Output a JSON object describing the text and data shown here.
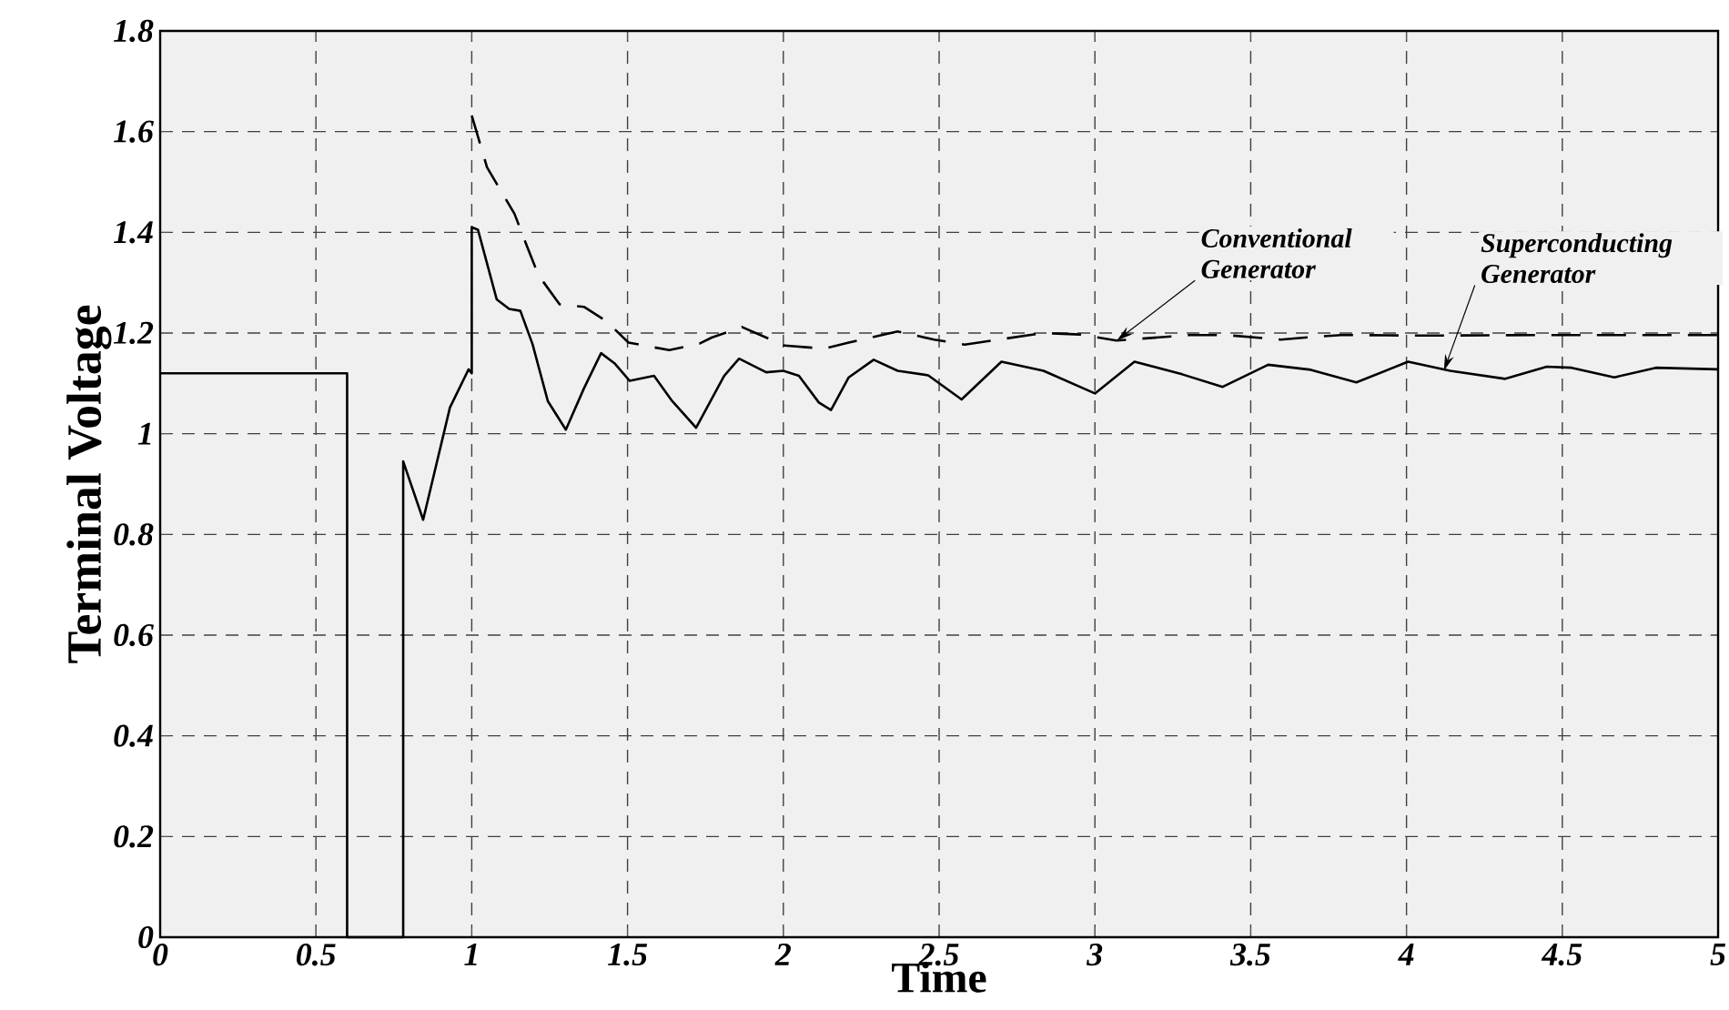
{
  "chart_data": {
    "type": "line",
    "xlabel": "Time",
    "ylabel": "Terminal Voltage",
    "xlim": [
      0,
      5
    ],
    "ylim": [
      0,
      1.8
    ],
    "xticks": [
      0,
      0.5,
      1,
      1.5,
      2,
      2.5,
      3,
      3.5,
      4,
      4.5,
      5
    ],
    "yticks": [
      0,
      0.2,
      0.4,
      0.6,
      0.8,
      1,
      1.2,
      1.4,
      1.6,
      1.8
    ],
    "grid": true,
    "series": [
      {
        "color": "#000000",
        "line_style": "solid",
        "x": [
          0,
          0.6,
          0.6,
          0.78,
          0.78,
          0.844,
          0.93,
          0.99,
          1.0,
          1.0,
          1.02,
          1.08,
          1.12,
          1.156,
          1.195,
          1.244,
          1.302,
          1.36,
          1.415,
          1.458,
          1.507,
          1.585,
          1.643,
          1.72,
          1.81,
          1.858,
          1.945,
          2.0,
          2.05,
          2.114,
          2.153,
          2.21,
          2.29,
          2.367,
          2.465,
          2.572,
          2.7,
          2.835,
          3.0,
          3.127,
          3.28,
          3.41,
          3.556,
          3.693,
          3.839,
          4.005,
          4.14,
          4.317,
          4.45,
          4.53,
          4.667,
          4.8,
          4.998
        ],
        "values": [
          1.12,
          1.12,
          0,
          0,
          0.945,
          0.829,
          1.052,
          1.128,
          1.12,
          1.41,
          1.405,
          1.267,
          1.248,
          1.244,
          1.178,
          1.065,
          1.008,
          1.09,
          1.16,
          1.14,
          1.105,
          1.115,
          1.065,
          1.012,
          1.115,
          1.149,
          1.122,
          1.125,
          1.115,
          1.062,
          1.047,
          1.112,
          1.147,
          1.125,
          1.116,
          1.068,
          1.143,
          1.125,
          1.08,
          1.143,
          1.118,
          1.093,
          1.137,
          1.127,
          1.102,
          1.143,
          1.125,
          1.109,
          1.133,
          1.131,
          1.112,
          1.131,
          1.128
        ]
      },
      {
        "color": "#000000",
        "line_style": "dashed",
        "x": [
          1.0,
          1.049,
          1.137,
          1.18,
          1.214,
          1.282,
          1.36,
          1.433,
          1.503,
          1.634,
          1.731,
          1.77,
          1.867,
          2.004,
          2.13,
          2.21,
          2.367,
          2.484,
          2.582,
          2.835,
          2.952,
          3.069,
          3.303,
          3.42,
          3.596,
          3.674,
          3.79,
          4.064,
          4.453,
          4.998
        ],
        "values": [
          1.632,
          1.529,
          1.437,
          1.368,
          1.315,
          1.257,
          1.252,
          1.223,
          1.181,
          1.166,
          1.179,
          1.191,
          1.212,
          1.175,
          1.169,
          1.181,
          1.203,
          1.187,
          1.177,
          1.2,
          1.197,
          1.185,
          1.196,
          1.196,
          1.187,
          1.191,
          1.196,
          1.195,
          1.196,
          1.196
        ]
      }
    ],
    "annotations": [
      {
        "text": "Conventional Generator",
        "x": 3.07,
        "y": 1.185
      },
      {
        "text": "Superconducting Generator",
        "x": 4.12,
        "y": 1.125
      }
    ]
  }
}
